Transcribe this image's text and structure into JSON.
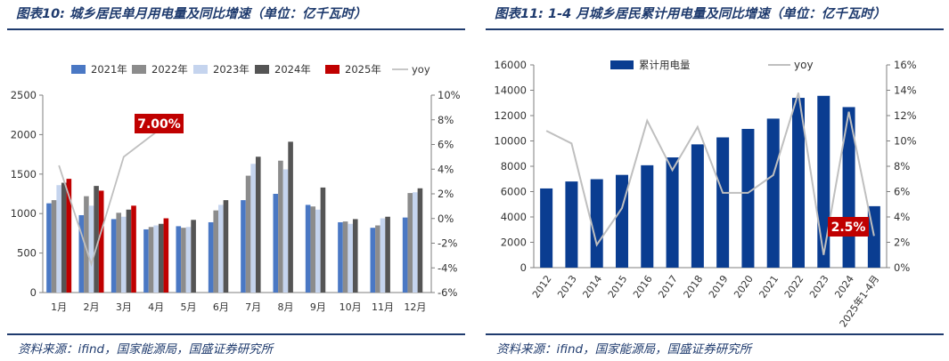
{
  "colors": {
    "heading": "#1f3b6e"
  },
  "left": {
    "title": "图表10: 城乡居民单月用电量及同比增速（单位：亿千瓦时）",
    "source": "资料来源：ifind，国家能源局，国盛证券研究所"
  },
  "right": {
    "title": "图表11: 1-4 月城乡居民累计用电量及同比增速（单位：亿千瓦时）",
    "source": "资料来源：ifind，国家能源局，国盛证券研究所"
  },
  "chart_data": [
    {
      "type": "bar",
      "categories": [
        "1月",
        "2月",
        "3月",
        "4月",
        "5月",
        "6月",
        "7月",
        "8月",
        "9月",
        "10月",
        "11月",
        "12月"
      ],
      "series": [
        {
          "name": "2021年",
          "color": "#4a78c4",
          "values": [
            1130,
            980,
            930,
            800,
            840,
            890,
            1170,
            1250,
            1110,
            890,
            820,
            950
          ]
        },
        {
          "name": "2022年",
          "color": "#8c8c8c",
          "values": [
            1170,
            1220,
            1010,
            830,
            820,
            1040,
            1480,
            1670,
            1090,
            900,
            850,
            1260
          ]
        },
        {
          "name": "2023年",
          "color": "#c5d4ee",
          "values": [
            1360,
            1100,
            960,
            850,
            830,
            1110,
            1630,
            1560,
            1050,
            870,
            940,
            1270
          ]
        },
        {
          "name": "2024年",
          "color": "#555555",
          "values": [
            1390,
            1350,
            1050,
            870,
            920,
            1170,
            1720,
            1910,
            1330,
            930,
            960,
            1320
          ]
        },
        {
          "name": "2025年",
          "color": "#c00000",
          "values": [
            1440,
            1290,
            1100,
            940,
            null,
            null,
            null,
            null,
            null,
            null,
            null,
            null
          ]
        }
      ],
      "yoy": {
        "name": "yoy",
        "color": "#bfbfbf",
        "values": [
          4.3,
          -3.7,
          5.0,
          7.0
        ]
      },
      "ylim": [
        0,
        2500
      ],
      "yticks": [
        0,
        500,
        1000,
        1500,
        2000,
        2500
      ],
      "y2lim": [
        -6,
        10
      ],
      "y2ticks": [
        "-6%",
        "-4%",
        "-2%",
        "0%",
        "2%",
        "4%",
        "6%",
        "8%",
        "10%"
      ],
      "annotation": "7.00%",
      "legend": "top"
    },
    {
      "type": "bar",
      "categories": [
        "2012",
        "2013",
        "2014",
        "2015",
        "2016",
        "2017",
        "2018",
        "2019",
        "2020",
        "2021",
        "2022",
        "2023",
        "2024",
        "2025年1-4月"
      ],
      "series": [
        {
          "name": "累计用电量",
          "color": "#0a3d91",
          "values": [
            6250,
            6800,
            6980,
            7320,
            8080,
            8700,
            9730,
            10280,
            10950,
            11760,
            13400,
            13560,
            12670,
            4850
          ]
        }
      ],
      "yoy": {
        "name": "yoy",
        "color": "#bfbfbf",
        "values": [
          10.8,
          9.8,
          1.8,
          4.7,
          11.6,
          7.7,
          11.1,
          5.9,
          5.9,
          7.3,
          13.8,
          1.0,
          12.3,
          2.5
        ]
      },
      "ylim": [
        0,
        16000
      ],
      "yticks": [
        0,
        2000,
        4000,
        6000,
        8000,
        10000,
        12000,
        14000,
        16000
      ],
      "y2lim": [
        0,
        16
      ],
      "y2ticks": [
        "0%",
        "2%",
        "4%",
        "6%",
        "8%",
        "10%",
        "12%",
        "14%",
        "16%"
      ],
      "annotation": "2.5%",
      "legend": "top"
    }
  ]
}
